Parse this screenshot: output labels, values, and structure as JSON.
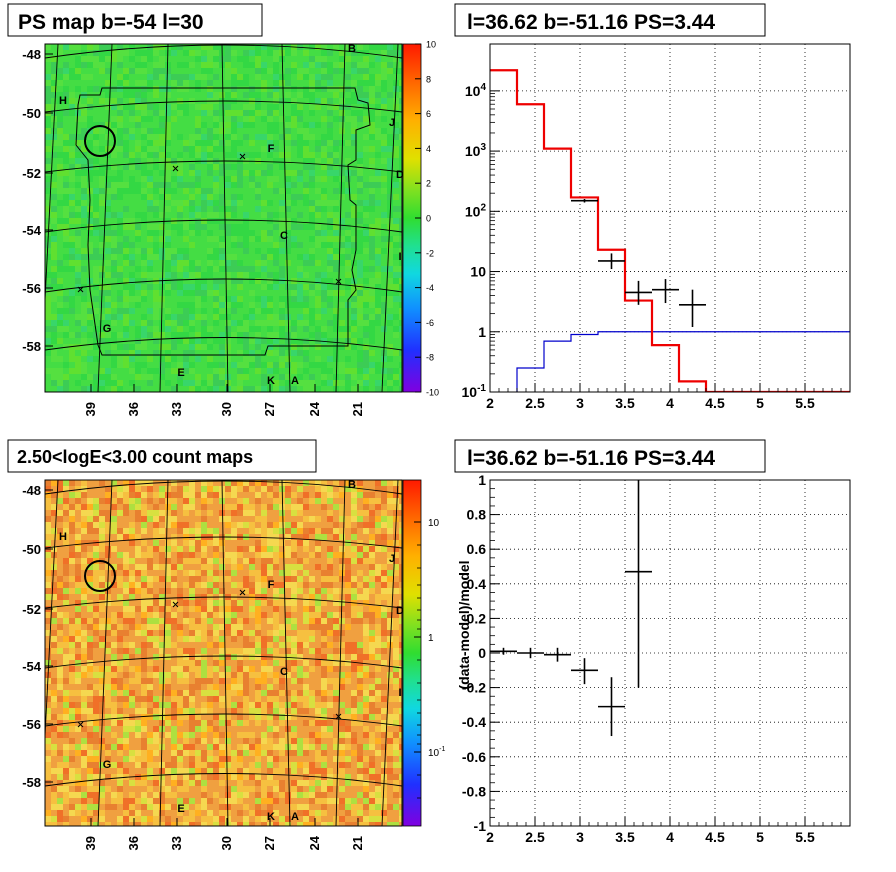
{
  "titles": {
    "map_top": "PS map b=-54 l=30",
    "spec_top": "l=36.62 b=-51.16 PS=3.44",
    "map_bottom": "2.50<logE<3.00 count maps",
    "spec_bottom": "l=36.62 b=-51.16 PS=3.44"
  },
  "source_labels": [
    "B",
    "H",
    "J",
    "F",
    "D",
    "C",
    "I",
    "G",
    "E",
    "K",
    "A"
  ],
  "chart_data": [
    {
      "type": "heatmap",
      "title": "PS map b=-54 l=30",
      "x_ticks": [
        "39",
        "36",
        "33",
        "30",
        "27",
        "24",
        "21"
      ],
      "y_ticks": [
        "-48",
        "-50",
        "-52",
        "-54",
        "-56",
        "-58"
      ],
      "colorbar": {
        "min": -10,
        "max": 10,
        "ticks": [
          "10",
          "8",
          "6",
          "4",
          "2",
          "0",
          "-2",
          "-4",
          "-6",
          "-8",
          "-10"
        ]
      },
      "dominant_color": "#33dd33",
      "circle": {
        "l": 38.6,
        "b": -51.0
      }
    },
    {
      "type": "line",
      "title": "l=36.62 b=-51.16 PS=3.44",
      "xlim": [
        2,
        6
      ],
      "ylim_log": [
        0.1,
        60000
      ],
      "log_y": true,
      "grid": true,
      "x_ticks": [
        "2",
        "2.5",
        "3",
        "3.5",
        "4",
        "4.5",
        "5",
        "5.5"
      ],
      "y_ticks": [
        "10^4",
        "10^3",
        "10^2",
        "10",
        "1",
        "10^-1"
      ],
      "model_steps": {
        "edges": [
          2.0,
          2.3,
          2.6,
          2.9,
          3.2,
          3.5,
          3.8,
          4.1,
          4.4,
          6.0
        ],
        "values": [
          22000,
          6000,
          1100,
          170,
          23,
          3.3,
          0.6,
          0.15,
          0.1
        ]
      },
      "background_steps": {
        "edges": [
          2.3,
          2.6,
          2.9,
          3.2,
          6.0
        ],
        "values": [
          0.25,
          0.7,
          0.9,
          1.0
        ]
      },
      "points": [
        {
          "x": 3.05,
          "y": 150,
          "ylo": 140,
          "yhi": 160,
          "dx": 0.15
        },
        {
          "x": 3.35,
          "y": 15,
          "ylo": 11,
          "yhi": 20,
          "dx": 0.15
        },
        {
          "x": 3.65,
          "y": 4.5,
          "ylo": 2.8,
          "yhi": 7.0,
          "dx": 0.15
        },
        {
          "x": 3.95,
          "y": 5.0,
          "ylo": 3.0,
          "yhi": 7.5,
          "dx": 0.15
        },
        {
          "x": 4.25,
          "y": 2.8,
          "ylo": 1.2,
          "yhi": 5.0,
          "dx": 0.15
        }
      ]
    },
    {
      "type": "heatmap",
      "title": "2.50<logE<3.00 count maps",
      "x_ticks": [
        "39",
        "36",
        "33",
        "30",
        "27",
        "24",
        "21"
      ],
      "y_ticks": [
        "-48",
        "-50",
        "-52",
        "-54",
        "-56",
        "-58"
      ],
      "colorbar": {
        "log": true,
        "ticks": [
          "10",
          "1",
          "10^-1"
        ]
      },
      "dominant_color": "#f0a040",
      "circle": {
        "l": 38.6,
        "b": -51.0
      }
    },
    {
      "type": "scatter",
      "title": "l=36.62 b=-51.16 PS=3.44",
      "ylabel": "(data-model)/model",
      "xlim": [
        2,
        6
      ],
      "ylim": [
        -1,
        1
      ],
      "grid": true,
      "x_ticks": [
        "2",
        "2.5",
        "3",
        "3.5",
        "4",
        "4.5",
        "5",
        "5.5"
      ],
      "y_ticks": [
        "1",
        "0.8",
        "0.6",
        "0.4",
        "0.2",
        "0",
        "-0.2",
        "-0.4",
        "-0.6",
        "-0.8",
        "-1"
      ],
      "points": [
        {
          "x": 2.15,
          "y": 0.01,
          "ylo": -0.01,
          "yhi": 0.03,
          "dx": 0.15
        },
        {
          "x": 2.45,
          "y": 0.0,
          "ylo": -0.03,
          "yhi": 0.03,
          "dx": 0.15
        },
        {
          "x": 2.75,
          "y": -0.01,
          "ylo": -0.05,
          "yhi": 0.03,
          "dx": 0.15
        },
        {
          "x": 3.05,
          "y": -0.1,
          "ylo": -0.18,
          "yhi": -0.03,
          "dx": 0.15
        },
        {
          "x": 3.35,
          "y": -0.31,
          "ylo": -0.48,
          "yhi": -0.14,
          "dx": 0.15
        },
        {
          "x": 3.65,
          "y": 0.47,
          "ylo": -0.2,
          "yhi": 1.0,
          "dx": 0.15
        }
      ]
    }
  ]
}
